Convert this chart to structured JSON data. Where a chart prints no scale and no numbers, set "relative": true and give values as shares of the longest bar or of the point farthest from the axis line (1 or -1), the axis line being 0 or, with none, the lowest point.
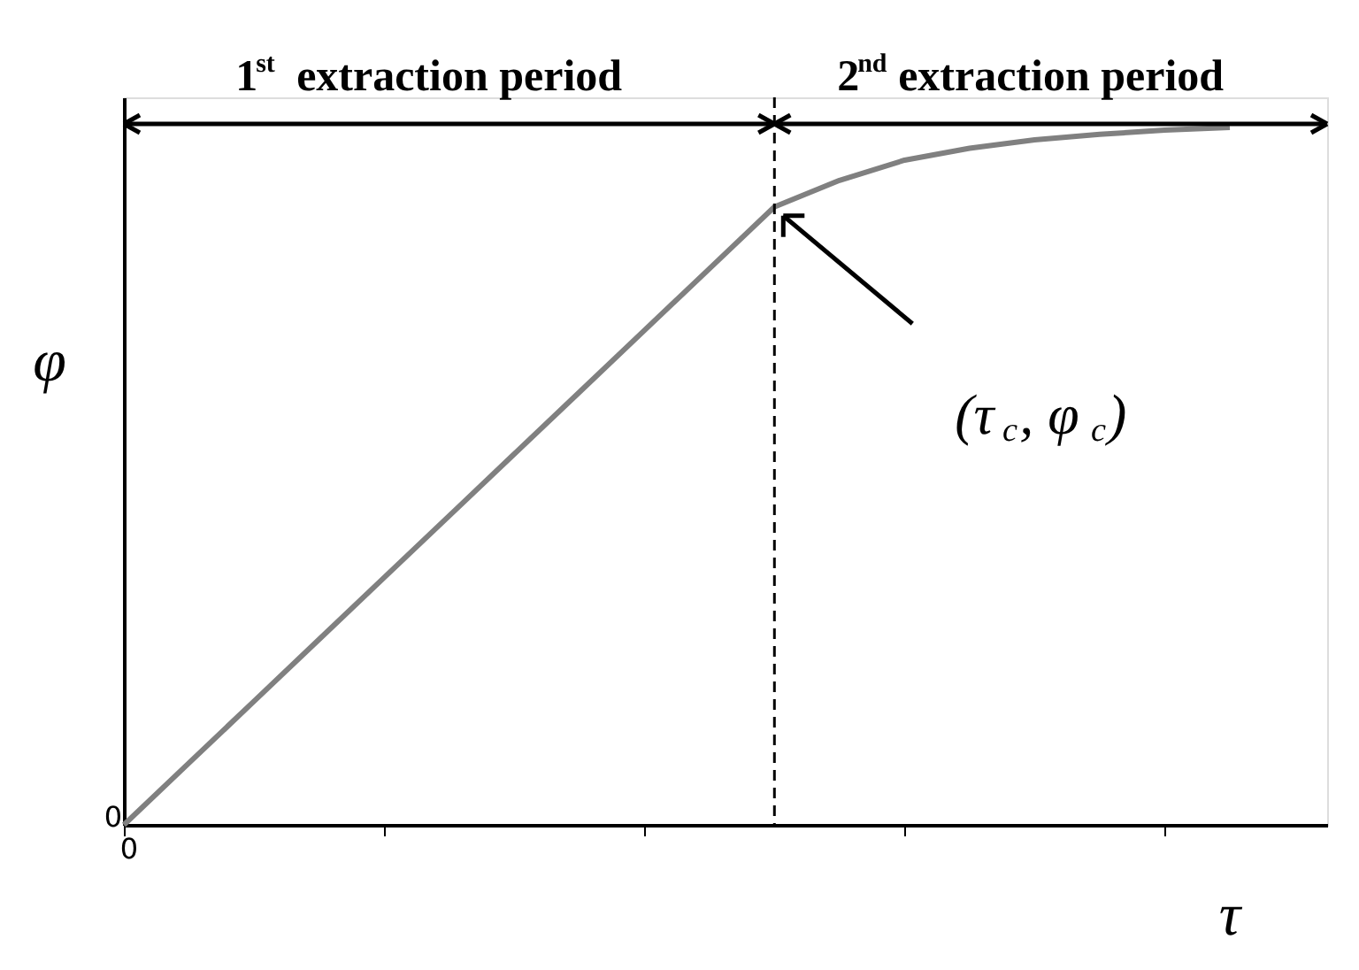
{
  "chart_data": {
    "type": "line",
    "relative": true,
    "xlabel": "τ",
    "ylabel": "φ",
    "categories": [
      null,
      null,
      null,
      null,
      null,
      null,
      null,
      null,
      null,
      null,
      null,
      null,
      null,
      null,
      null,
      null,
      null,
      null
    ],
    "series": [
      {
        "color": "#808080",
        "values": [
          0,
          0.0886,
          0.1772,
          0.2658,
          0.3544,
          0.443,
          0.5316,
          0.6202,
          0.7088,
          0.7974,
          0.886,
          0.924,
          0.953,
          0.97,
          0.982,
          0.99,
          0.996,
          1.0
        ]
      }
    ],
    "annotations": [
      "1$^{st}$ extraction period",
      "2$^{nd}$ extraction period",
      "(τ$_{c}$, φ$_{c}$)",
      "0",
      "0"
    ],
    "grid": false,
    "marker": "none",
    "line_style": "solid"
  }
}
